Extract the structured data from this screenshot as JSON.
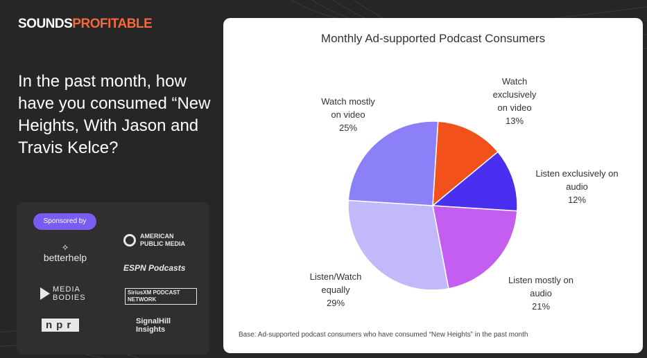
{
  "brand": {
    "part1": "SOUNDS",
    "part2": "PROFITABLE"
  },
  "question": "In the past month, how have you consumed “New Heights, With Jason and Travis Kelce?",
  "sponsors": {
    "label": "Sponsored by",
    "items": [
      "betterhelp",
      "AMERICAN PUBLIC MEDIA",
      "ESPN Podcasts",
      "MEDIA BODIES",
      "SiriusXM PODCAST NETWORK",
      "npr",
      "SignalHill Insights"
    ]
  },
  "chart_data": {
    "type": "pie",
    "title": "Monthly Ad-supported Podcast Consumers",
    "slices": [
      {
        "label": "Watch exclusively on video",
        "value": 13,
        "display": "13%",
        "color": "#f2511b"
      },
      {
        "label": "Listen exclusively on audio",
        "value": 12,
        "display": "12%",
        "color": "#4a2ff0"
      },
      {
        "label": "Listen mostly on audio",
        "value": 21,
        "display": "21%",
        "color": "#c35ef0"
      },
      {
        "label": "Listen/Watch equally",
        "value": 29,
        "display": "29%",
        "color": "#c1b9fa"
      },
      {
        "label": "Watch mostly on video",
        "value": 25,
        "display": "25%",
        "color": "#8b80f8"
      }
    ],
    "footnote": "Base: Ad-supported podcast consumers who have consumed “New Heights” in the past month"
  }
}
